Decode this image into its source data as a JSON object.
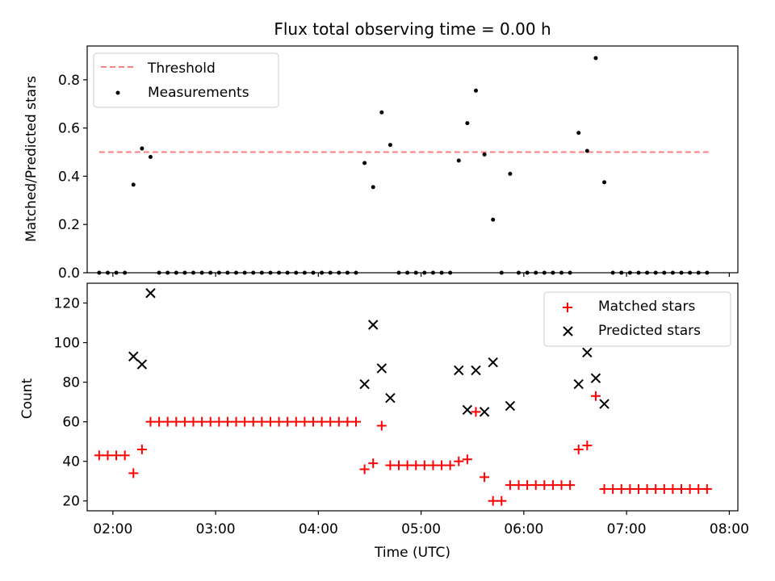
{
  "chart_data": [
    {
      "type": "scatter",
      "title": "Flux total observing time = 0.00 h",
      "xlabel": "",
      "ylabel": "Matched/Predicted stars",
      "xlim": [
        "01:45",
        "08:05"
      ],
      "ylim": [
        0,
        0.94
      ],
      "yticks": [
        "0.0",
        "0.2",
        "0.4",
        "0.6",
        "0.8"
      ],
      "grid": false,
      "legend_position": "top-left",
      "threshold": {
        "name": "Threshold",
        "y": 0.5,
        "x_start": "01:52",
        "x_end": "07:48",
        "color": "#ff7f7f"
      },
      "series": [
        {
          "name": "Measurements",
          "color": "#000000",
          "points": [
            [
              "01:52",
              0
            ],
            [
              "01:57",
              0
            ],
            [
              "02:02",
              0
            ],
            [
              "02:07",
              0
            ],
            [
              "02:12",
              0.365
            ],
            [
              "02:17",
              0.515
            ],
            [
              "02:22",
              0.48
            ],
            [
              "02:27",
              0
            ],
            [
              "02:32",
              0
            ],
            [
              "02:37",
              0
            ],
            [
              "02:42",
              0
            ],
            [
              "02:47",
              0
            ],
            [
              "02:52",
              0
            ],
            [
              "02:57",
              0
            ],
            [
              "03:02",
              0
            ],
            [
              "03:07",
              0
            ],
            [
              "03:12",
              0
            ],
            [
              "03:17",
              0
            ],
            [
              "03:22",
              0
            ],
            [
              "03:27",
              0
            ],
            [
              "03:32",
              0
            ],
            [
              "03:37",
              0
            ],
            [
              "03:42",
              0
            ],
            [
              "03:47",
              0
            ],
            [
              "03:52",
              0
            ],
            [
              "03:57",
              0
            ],
            [
              "04:02",
              0
            ],
            [
              "04:07",
              0
            ],
            [
              "04:12",
              0
            ],
            [
              "04:17",
              0
            ],
            [
              "04:22",
              0
            ],
            [
              "04:27",
              0.455
            ],
            [
              "04:32",
              0.355
            ],
            [
              "04:37",
              0.665
            ],
            [
              "04:42",
              0.53
            ],
            [
              "04:47",
              0
            ],
            [
              "04:52",
              0
            ],
            [
              "04:57",
              0
            ],
            [
              "05:02",
              0
            ],
            [
              "05:07",
              0
            ],
            [
              "05:12",
              0
            ],
            [
              "05:17",
              0
            ],
            [
              "05:22",
              0.465
            ],
            [
              "05:27",
              0.62
            ],
            [
              "05:32",
              0.755
            ],
            [
              "05:37",
              0.49
            ],
            [
              "05:42",
              0.22
            ],
            [
              "05:47",
              0
            ],
            [
              "05:52",
              0.41
            ],
            [
              "05:57",
              0
            ],
            [
              "06:02",
              0
            ],
            [
              "06:07",
              0
            ],
            [
              "06:12",
              0
            ],
            [
              "06:17",
              0
            ],
            [
              "06:22",
              0
            ],
            [
              "06:27",
              0
            ],
            [
              "06:32",
              0.58
            ],
            [
              "06:37",
              0.505
            ],
            [
              "06:42",
              0.89
            ],
            [
              "06:47",
              0.375
            ],
            [
              "06:52",
              0
            ],
            [
              "06:57",
              0
            ],
            [
              "07:02",
              0
            ],
            [
              "07:07",
              0
            ],
            [
              "07:12",
              0
            ],
            [
              "07:17",
              0
            ],
            [
              "07:22",
              0
            ],
            [
              "07:27",
              0
            ],
            [
              "07:32",
              0
            ],
            [
              "07:37",
              0
            ],
            [
              "07:42",
              0
            ],
            [
              "07:47",
              0
            ]
          ]
        }
      ]
    },
    {
      "type": "scatter",
      "title": "",
      "xlabel": "Time (UTC)",
      "ylabel": "Count",
      "xlim": [
        "01:45",
        "08:05"
      ],
      "ylim": [
        15,
        130
      ],
      "xticks": [
        "02:00",
        "03:00",
        "04:00",
        "05:00",
        "06:00",
        "07:00",
        "08:00"
      ],
      "yticks": [
        "20",
        "40",
        "60",
        "80",
        "100",
        "120"
      ],
      "grid": false,
      "legend_position": "top-right",
      "series": [
        {
          "name": "Matched stars",
          "color": "#ff0000",
          "marker": "+",
          "points": [
            [
              "01:52",
              43
            ],
            [
              "01:57",
              43
            ],
            [
              "02:02",
              43
            ],
            [
              "02:07",
              43
            ],
            [
              "02:12",
              34
            ],
            [
              "02:17",
              46
            ],
            [
              "02:22",
              60
            ],
            [
              "02:27",
              60
            ],
            [
              "02:32",
              60
            ],
            [
              "02:37",
              60
            ],
            [
              "02:42",
              60
            ],
            [
              "02:47",
              60
            ],
            [
              "02:52",
              60
            ],
            [
              "02:57",
              60
            ],
            [
              "03:02",
              60
            ],
            [
              "03:07",
              60
            ],
            [
              "03:12",
              60
            ],
            [
              "03:17",
              60
            ],
            [
              "03:22",
              60
            ],
            [
              "03:27",
              60
            ],
            [
              "03:32",
              60
            ],
            [
              "03:37",
              60
            ],
            [
              "03:42",
              60
            ],
            [
              "03:47",
              60
            ],
            [
              "03:52",
              60
            ],
            [
              "03:57",
              60
            ],
            [
              "04:02",
              60
            ],
            [
              "04:07",
              60
            ],
            [
              "04:12",
              60
            ],
            [
              "04:17",
              60
            ],
            [
              "04:22",
              60
            ],
            [
              "04:27",
              36
            ],
            [
              "04:32",
              39
            ],
            [
              "04:37",
              58
            ],
            [
              "04:42",
              38
            ],
            [
              "04:47",
              38
            ],
            [
              "04:52",
              38
            ],
            [
              "04:57",
              38
            ],
            [
              "05:02",
              38
            ],
            [
              "05:07",
              38
            ],
            [
              "05:12",
              38
            ],
            [
              "05:17",
              38
            ],
            [
              "05:22",
              40
            ],
            [
              "05:27",
              41
            ],
            [
              "05:32",
              65
            ],
            [
              "05:37",
              32
            ],
            [
              "05:42",
              20
            ],
            [
              "05:47",
              20
            ],
            [
              "05:52",
              28
            ],
            [
              "05:57",
              28
            ],
            [
              "06:02",
              28
            ],
            [
              "06:07",
              28
            ],
            [
              "06:12",
              28
            ],
            [
              "06:17",
              28
            ],
            [
              "06:22",
              28
            ],
            [
              "06:27",
              28
            ],
            [
              "06:32",
              46
            ],
            [
              "06:37",
              48
            ],
            [
              "06:42",
              73
            ],
            [
              "06:47",
              26
            ],
            [
              "06:52",
              26
            ],
            [
              "06:57",
              26
            ],
            [
              "07:02",
              26
            ],
            [
              "07:07",
              26
            ],
            [
              "07:12",
              26
            ],
            [
              "07:17",
              26
            ],
            [
              "07:22",
              26
            ],
            [
              "07:27",
              26
            ],
            [
              "07:32",
              26
            ],
            [
              "07:37",
              26
            ],
            [
              "07:42",
              26
            ],
            [
              "07:47",
              26
            ]
          ]
        },
        {
          "name": "Predicted stars",
          "color": "#000000",
          "marker": "x",
          "points": [
            [
              "02:12",
              93
            ],
            [
              "02:17",
              89
            ],
            [
              "02:22",
              125
            ],
            [
              "04:27",
              79
            ],
            [
              "04:32",
              109
            ],
            [
              "04:37",
              87
            ],
            [
              "04:42",
              72
            ],
            [
              "05:22",
              86
            ],
            [
              "05:27",
              66
            ],
            [
              "05:32",
              86
            ],
            [
              "05:37",
              65
            ],
            [
              "05:42",
              90
            ],
            [
              "05:52",
              68
            ],
            [
              "06:32",
              79
            ],
            [
              "06:37",
              95
            ],
            [
              "06:42",
              82
            ],
            [
              "06:47",
              69
            ]
          ]
        }
      ]
    }
  ]
}
